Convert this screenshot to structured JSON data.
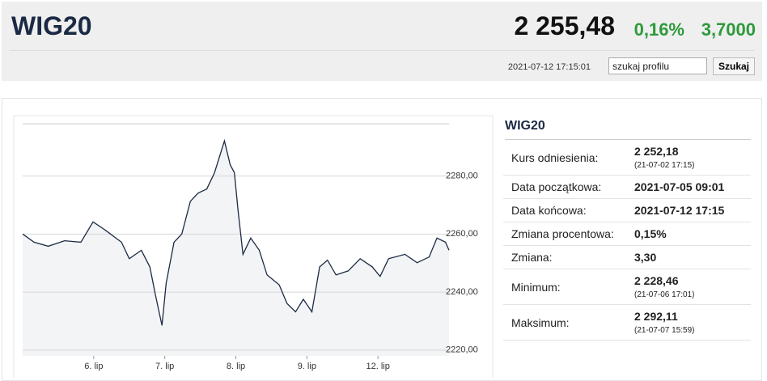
{
  "header": {
    "title": "WIG20",
    "price": "2 255,48",
    "change_pct": "0,16%",
    "change": "3,7000",
    "timestamp": "2021-07-12 17:15:01",
    "search_placeholder": "szukaj profilu",
    "search_button": "Szukaj"
  },
  "chart_data": {
    "type": "line",
    "color": "#1b2a44",
    "area_color": "#f3f4f6",
    "xlim": [
      0,
      6
    ],
    "xticks": [
      {
        "value": 1,
        "label": "6. lip"
      },
      {
        "value": 2,
        "label": "7. lip"
      },
      {
        "value": 3,
        "label": "8. lip"
      },
      {
        "value": 4,
        "label": "9. lip"
      },
      {
        "value": 5,
        "label": "12. lip"
      }
    ],
    "ylim": [
      2218,
      2298
    ],
    "yticks": [
      {
        "value": 2220,
        "label": "2220,00"
      },
      {
        "value": 2240,
        "label": "2240,00"
      },
      {
        "value": 2260,
        "label": "2260,00"
      },
      {
        "value": 2280,
        "label": "2280,00"
      }
    ],
    "grid": true,
    "x": [
      0,
      0.16,
      0.36,
      0.59,
      0.82,
      0.99,
      1.16,
      1.39,
      1.5,
      1.67,
      1.79,
      1.87,
      1.96,
      2.02,
      2.13,
      2.24,
      2.36,
      2.47,
      2.59,
      2.7,
      2.84,
      2.92,
      2.98,
      3.03,
      3.1,
      3.21,
      3.33,
      3.44,
      3.61,
      3.72,
      3.84,
      3.95,
      4.07,
      4.18,
      4.29,
      4.41,
      4.58,
      4.75,
      4.92,
      5.03,
      5.15,
      5.38,
      5.55,
      5.72,
      5.83,
      5.95,
      6.0
    ],
    "values": [
      2260.0,
      2257.2,
      2255.8,
      2257.7,
      2257.2,
      2264.2,
      2261.4,
      2257.2,
      2251.5,
      2254.4,
      2248.7,
      2238.9,
      2228.5,
      2243.1,
      2257.2,
      2260.0,
      2271.3,
      2274.1,
      2275.5,
      2281.1,
      2292.1,
      2283.9,
      2281.1,
      2268.5,
      2253.0,
      2258.6,
      2254.4,
      2245.9,
      2242.5,
      2236.1,
      2233.2,
      2237.5,
      2233.2,
      2248.7,
      2251.0,
      2245.9,
      2247.3,
      2251.5,
      2248.7,
      2245.4,
      2251.5,
      2253.0,
      2250.1,
      2252.1,
      2258.6,
      2257.2,
      2254.4
    ]
  },
  "info": {
    "title": "WIG20",
    "rows": [
      {
        "label": "Kurs odniesienia:",
        "value": "2 252,18",
        "sub": "(21-07-02 17:15)"
      },
      {
        "label": "Data początkowa:",
        "value": "2021-07-05 09:01"
      },
      {
        "label": "Data końcowa:",
        "value": "2021-07-12 17:15"
      },
      {
        "label": "Zmiana procentowa:",
        "value": "0,15%"
      },
      {
        "label": "Zmiana:",
        "value": "3,30"
      },
      {
        "label": "Minimum:",
        "value": "2 228,46",
        "sub": "(21-07-06 17:01)"
      },
      {
        "label": "Maksimum:",
        "value": "2 292,11",
        "sub": "(21-07-07 15:59)"
      }
    ]
  }
}
